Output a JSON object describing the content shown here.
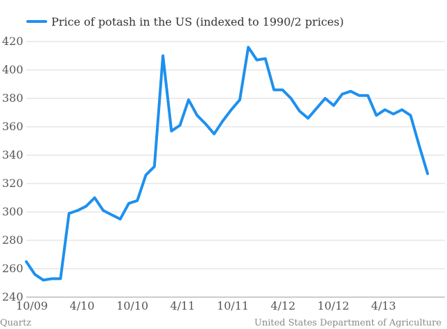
{
  "chart_data": {
    "type": "line",
    "title": "",
    "xlabel": "",
    "ylabel": "",
    "ylim": [
      240,
      420
    ],
    "y_ticks": [
      240,
      260,
      280,
      300,
      320,
      340,
      360,
      380,
      400,
      420
    ],
    "x_tick_labels": [
      "10/09",
      "4/10",
      "10/10",
      "4/11",
      "10/11",
      "4/12",
      "10/12",
      "4/13"
    ],
    "grid": "horizontal",
    "legend_position": "top-left",
    "series": [
      {
        "name": "Price of potash in the US (indexed to 1990/2 prices)",
        "color": "#1e90ee",
        "values": [
          265,
          256,
          252,
          253,
          253,
          299,
          301,
          304,
          310,
          301,
          298,
          295,
          306,
          308,
          326,
          332,
          410,
          357,
          361,
          379,
          368,
          362,
          355,
          364,
          372,
          379,
          416,
          407,
          408,
          386,
          386,
          380,
          371,
          366,
          373,
          380,
          375,
          383,
          385,
          382,
          382,
          368,
          372,
          369,
          372,
          368,
          347,
          327
        ]
      }
    ]
  },
  "footer": {
    "source_left": "Quartz",
    "source_right": "United States Department of Agriculture"
  }
}
